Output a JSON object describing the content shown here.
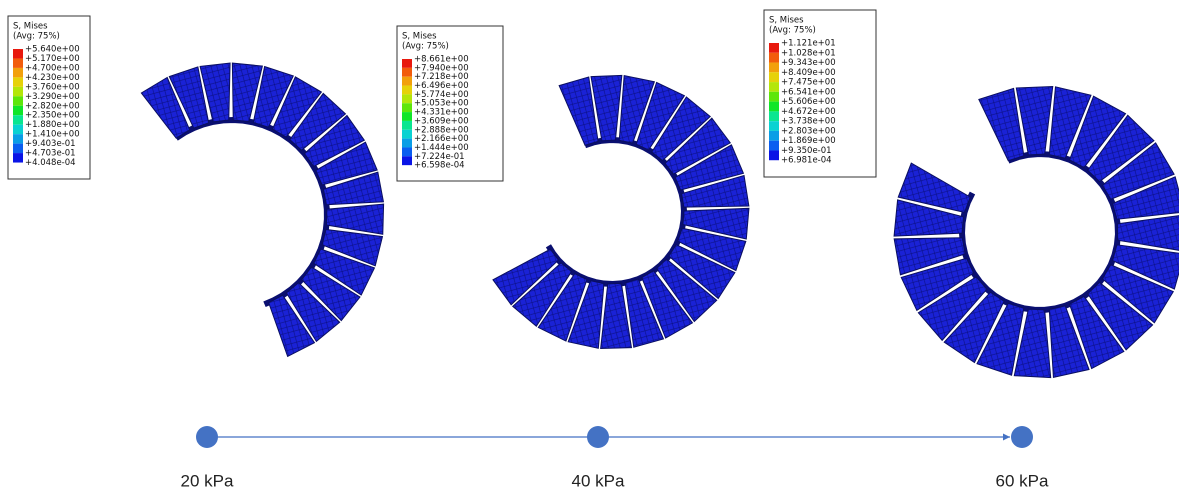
{
  "panels": [
    {
      "legend_title": "S, Mises",
      "legend_subtitle": "(Avg: 75%)",
      "legend_labels": [
        "+5.640e+00",
        "+5.170e+00",
        "+4.700e+00",
        "+4.230e+00",
        "+3.760e+00",
        "+3.290e+00",
        "+2.820e+00",
        "+2.350e+00",
        "+1.880e+00",
        "+1.410e+00",
        "+9.403e-01",
        "+4.703e-01",
        "+4.048e-04"
      ]
    },
    {
      "legend_title": "S, Mises",
      "legend_subtitle": "(Avg: 75%)",
      "legend_labels": [
        "+8.661e+00",
        "+7.940e+00",
        "+7.218e+00",
        "+6.496e+00",
        "+5.774e+00",
        "+5.053e+00",
        "+4.331e+00",
        "+3.609e+00",
        "+2.888e+00",
        "+2.166e+00",
        "+1.444e+00",
        "+7.224e-01",
        "+6.598e-04"
      ]
    },
    {
      "legend_title": "S, Mises",
      "legend_subtitle": "(Avg: 75%)",
      "legend_labels": [
        "+1.121e+01",
        "+1.028e+01",
        "+9.343e+00",
        "+8.409e+00",
        "+7.475e+00",
        "+6.541e+00",
        "+5.606e+00",
        "+4.672e+00",
        "+3.738e+00",
        "+2.803e+00",
        "+1.869e+00",
        "+9.350e-01",
        "+6.981e-04"
      ]
    }
  ],
  "legend_colors": [
    "#e8190e",
    "#f25c0c",
    "#f2a00c",
    "#e6d20a",
    "#b4e60a",
    "#5ee60a",
    "#10e628",
    "#0ae690",
    "#0ad2d2",
    "#0a9ee6",
    "#0a5ef0",
    "#0a14e6"
  ],
  "timeline": {
    "labels": [
      "20 kPa",
      "40 kPa",
      "60 kPa"
    ]
  }
}
